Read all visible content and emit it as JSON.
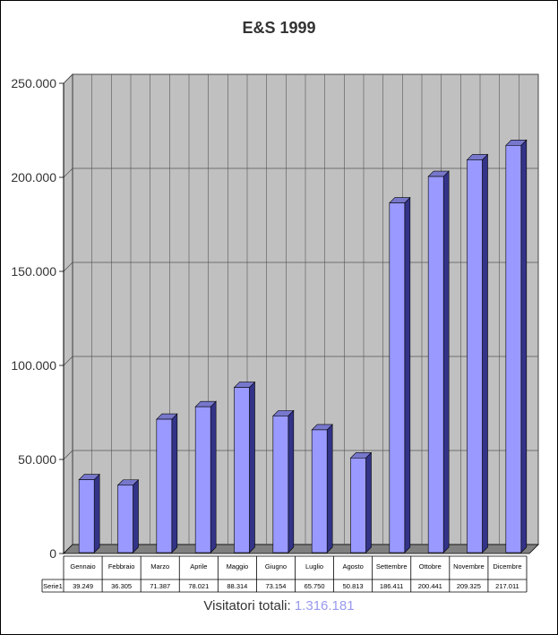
{
  "chart_data": {
    "type": "bar",
    "title": "E&S 1999",
    "categories": [
      "Gennaio",
      "Febbraio",
      "Marzo",
      "Aprile",
      "Maggio",
      "Giugno",
      "Luglio",
      "Agosto",
      "Settembre",
      "Ottobre",
      "Novembre",
      "Dicembre"
    ],
    "series": [
      {
        "name": "Serie1",
        "values": [
          39249,
          36305,
          71387,
          78021,
          88314,
          73154,
          65750,
          50813,
          186411,
          200441,
          209325,
          217011
        ],
        "labels": [
          "39.249",
          "36.305",
          "71.387",
          "78.021",
          "88.314",
          "73.154",
          "65.750",
          "50.813",
          "186.411",
          "200.441",
          "209.325",
          "217.011"
        ]
      }
    ],
    "y_ticks": [
      "0",
      "50.000",
      "100.000",
      "150.000",
      "200.000",
      "250.000"
    ],
    "ylim": [
      0,
      250000
    ],
    "grid": true,
    "legend": "none",
    "data_table": true,
    "colors": {
      "bar_front": "#9999ff",
      "bar_top": "#7777cc",
      "bar_side": "#333388",
      "wall": "#c0c0c0",
      "floor": "#808080"
    }
  },
  "footer": {
    "label": "Visitatori totali:",
    "value": "1.316.181"
  }
}
